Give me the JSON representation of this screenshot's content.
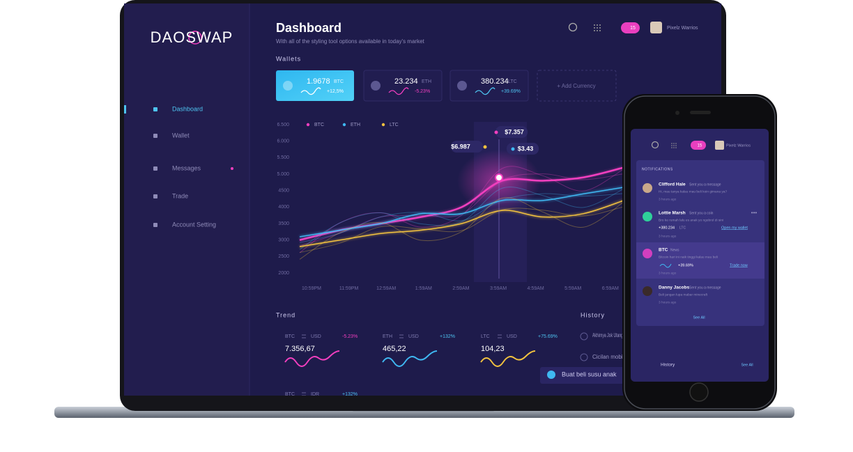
{
  "sidebar": {
    "logo": "DAOSWAP",
    "nav": [
      "Dashboard",
      "Wallet",
      "Messages",
      "Trade",
      "Account Setting"
    ]
  },
  "header": {
    "title": "Dashboard",
    "subtitle": "With all of the styling tool options available in today's market",
    "notification_count": "15",
    "user": "Pixelz Warrios"
  },
  "wallets": {
    "title": "Wallets",
    "cards": [
      {
        "amount": "1.9678",
        "currency": "BTC",
        "change": "+12,5%"
      },
      {
        "amount": "23.234",
        "currency": "ETH",
        "change": "-5.23%"
      },
      {
        "amount": "380.234",
        "currency": "LTC",
        "change": "+39.69%"
      }
    ],
    "add": "+ Add Currency"
  },
  "chart": {
    "x": [
      "10:59PM",
      "11:59PM",
      "12:59AM",
      "1:59AM",
      "2:59AM",
      "3:59AM",
      "4:59AM",
      "5:59AM",
      "6:59AM"
    ],
    "ylim": [
      2000,
      6500
    ],
    "yticks": [
      {
        "value": 6500,
        "label": "6.500"
      },
      {
        "value": 6000,
        "label": "6.000"
      },
      {
        "value": 5500,
        "label": "5.500"
      },
      {
        "value": 5000,
        "label": "5.000"
      },
      4500,
      4000,
      3500,
      3000,
      2500,
      2000
    ],
    "series": [
      {
        "name": "BTC",
        "color": "#f23fbf",
        "values": [
          3000,
          3300,
          3500,
          3700,
          4000,
          4800,
          4800,
          4900,
          5200
        ]
      },
      {
        "name": "ETH",
        "color": "#3fb8f2",
        "values": [
          3100,
          3300,
          3500,
          3800,
          3800,
          4200,
          4200,
          4400,
          4600
        ]
      },
      {
        "name": "LTC",
        "color": "#f2c23f",
        "values": [
          2800,
          3000,
          3200,
          3300,
          3500,
          3900,
          3700,
          3800,
          4200
        ]
      }
    ],
    "callouts": [
      "$7.357",
      "$6.987",
      "$3.43"
    ]
  },
  "trend": {
    "title": "Trend",
    "cards": [
      {
        "pair": [
          "BTC",
          "USD"
        ],
        "change": "-5.23%",
        "value": "7.356,67"
      },
      {
        "pair": [
          "ETH",
          "USD"
        ],
        "change": "+132%",
        "value": "465,22"
      },
      {
        "pair": [
          "LTC",
          "USD"
        ],
        "change": "+75.69%",
        "value": "104,23"
      },
      {
        "pair": [
          "BTC",
          "IDR"
        ],
        "change": "+132%"
      }
    ]
  },
  "history": {
    "title": "History",
    "items": [
      "Akhirnya Jok Utang",
      "Cicilan mobi",
      "Buat beli susu anak"
    ]
  },
  "phone": {
    "notification_count": "15",
    "user": "Pixelz Warrios",
    "section": "NOTIFICATIONS",
    "notifications": [
      {
        "name": "Clifford Hale",
        "action": "Sent you a message",
        "text": "Hi, mau tanya kalau mau beli koin gimana ya?",
        "time": "3 hours ago"
      },
      {
        "name": "Lottie Marsh",
        "action": "Sent you a coin",
        "text": "Bro ke rumah lalu es anak yo ngobrol di sini",
        "amount": "+380.234",
        "currency": "LTC",
        "link": "Open my wallet",
        "time": "3 hours ago"
      },
      {
        "name": "BTC",
        "action": "News",
        "text": "Bitcoin hari ini naik tinggi kalau mau beli",
        "change": "+39.69%",
        "link": "Trade now",
        "time": "3 hours ago"
      },
      {
        "name": "Danny Jacobs",
        "action": "Sent you a message",
        "text": "Beli jangan lupa mabar minecraft",
        "time": "3 hours ago"
      }
    ],
    "see_all": "See All",
    "history": "History",
    "history_see_all": "See All"
  }
}
